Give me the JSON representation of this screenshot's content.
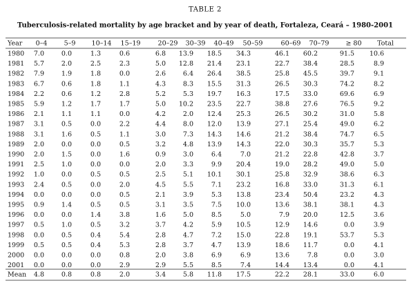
{
  "title": "TABLE 2",
  "subtitle": "Tuberculosis-related mortality by age bracket and by year of death, Fortaleza, Ceará – 1980-2001",
  "table": {
    "header": [
      "Year",
      "0–4",
      "5–9",
      "10–14",
      "15–19",
      "20–29",
      "30–39",
      "40–49",
      "50–59",
      "60–69",
      "70–79",
      "≥ 80",
      "Total"
    ],
    "rows": [
      [
        "1980",
        "7.0",
        "0.0",
        "1.3",
        "0.6",
        "6.8",
        "13.9",
        "18.5",
        "34.3",
        "46.1",
        "60.2",
        "91.5",
        "10.6"
      ],
      [
        "1981",
        "5.7",
        "2.0",
        "2.5",
        "2.3",
        "5.0",
        "12.8",
        "21.4",
        "23.1",
        "22.7",
        "38.4",
        "28.5",
        "8.9"
      ],
      [
        "1982",
        "7.9",
        "1.9",
        "1.8",
        "0.0",
        "2.6",
        "6.4",
        "26.4",
        "38.5",
        "25.8",
        "45.5",
        "39.7",
        "9.1"
      ],
      [
        "1983",
        "6.7",
        "0.6",
        "1.8",
        "1.1",
        "4.3",
        "8.3",
        "15.5",
        "31.3",
        "26.5",
        "30.3",
        "74.2",
        "8.2"
      ],
      [
        "1984",
        "2.2",
        "0.6",
        "1.2",
        "2.8",
        "5.2",
        "5.3",
        "19.7",
        "16.3",
        "17.5",
        "33.0",
        "69.6",
        "6.9"
      ],
      [
        "1985",
        "5.9",
        "1.2",
        "1.7",
        "1.7",
        "5.0",
        "10.2",
        "23.5",
        "22.7",
        "38.8",
        "27.6",
        "76.5",
        "9.2"
      ],
      [
        "1986",
        "2.1",
        "1.1",
        "1.1",
        "0.0",
        "4.2",
        "2.0",
        "12.4",
        "25.3",
        "26.5",
        "30.2",
        "31.0",
        "5.8"
      ],
      [
        "1987",
        "3.1",
        "0.5",
        "0.0",
        "2.2",
        "4.4",
        "8.0",
        "12.0",
        "13.9",
        "27.1",
        "25.4",
        "49.0",
        "6.2"
      ],
      [
        "1988",
        "3.1",
        "1.6",
        "0.5",
        "1.1",
        "3.0",
        "7.3",
        "14.3",
        "14.6",
        "21.2",
        "38.4",
        "74.7",
        "6.5"
      ],
      [
        "1989",
        "2.0",
        "0.0",
        "0.0",
        "0.5",
        "3.2",
        "4.8",
        "13.9",
        "14.3",
        "22.0",
        "30.3",
        "35.7",
        "5.3"
      ],
      [
        "1990",
        "2.0",
        "1.5",
        "0.0",
        "1.6",
        "0.9",
        "3.0",
        "6.4",
        "7.0",
        "21.2",
        "22.8",
        "42.8",
        "3.7"
      ],
      [
        "1991",
        "2.5",
        "1.0",
        "0.0",
        "0.0",
        "2.0",
        "3.3",
        "9.9",
        "20.4",
        "19.0",
        "28.2",
        "49.0",
        "5.0"
      ],
      [
        "1992",
        "1.0",
        "0.0",
        "0.5",
        "0.5",
        "2.5",
        "5.1",
        "10.1",
        "30.1",
        "25.8",
        "32.9",
        "38.6",
        "6.3"
      ],
      [
        "1993",
        "2.4",
        "0.5",
        "0.0",
        "2.0",
        "4.5",
        "5.5",
        "7.1",
        "23.2",
        "16.8",
        "33.0",
        "31.3",
        "6.1"
      ],
      [
        "1994",
        "0.0",
        "0.0",
        "0.0",
        "0.5",
        "2.1",
        "3.9",
        "5.3",
        "13.8",
        "23.4",
        "50.4",
        "23.2",
        "4.3"
      ],
      [
        "1995",
        "0.9",
        "1.4",
        "0.5",
        "0.5",
        "3.1",
        "3.5",
        "7.5",
        "10.0",
        "13.6",
        "38.1",
        "38.1",
        "4.3"
      ],
      [
        "1996",
        "0.0",
        "0.0",
        "1.4",
        "3.8",
        "1.6",
        "5.0",
        "8.5",
        "5.0",
        "7.9",
        "20.0",
        "12.5",
        "3.6"
      ],
      [
        "1997",
        "0.5",
        "1.0",
        "0.5",
        "3.2",
        "3.7",
        "4.2",
        "5.9",
        "10.5",
        "12.9",
        "14.6",
        "0.0",
        "3.9"
      ],
      [
        "1998",
        "0.0",
        "0.5",
        "0.4",
        "5.4",
        "2.8",
        "4.7",
        "7.2",
        "15.0",
        "22.8",
        "19.1",
        "53.7",
        "5.3"
      ],
      [
        "1999",
        "0.5",
        "0.5",
        "0.4",
        "5.3",
        "2.8",
        "3.7",
        "4.7",
        "13.9",
        "18.6",
        "11.7",
        "0.0",
        "4.1"
      ],
      [
        "2000",
        "0.0",
        "0.0",
        "0.0",
        "0.8",
        "2.0",
        "3.8",
        "6.9",
        "6.9",
        "13.6",
        "7.8",
        "0.0",
        "3.0"
      ],
      [
        "2001",
        "0.0",
        "0.0",
        "0.0",
        "2.9",
        "2.9",
        "5.5",
        "8.5",
        "7.4",
        "14.4",
        "13.4",
        "0.0",
        "4.1"
      ]
    ],
    "mean": [
      "Mean",
      "4.8",
      "0.8",
      "0.8",
      "2.0",
      "3.4",
      "5.8",
      "11.8",
      "17.5",
      "22.2",
      "28.1",
      "33.0",
      "6.0"
    ]
  }
}
